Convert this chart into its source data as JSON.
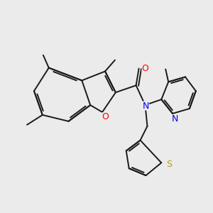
{
  "background_color": "#ebebeb",
  "bond_color": "#1a1a1a",
  "atom_colors": {
    "O_furan": "#ff0000",
    "O_carbonyl": "#ff0000",
    "N": "#0000ee",
    "N_pyridine": "#0000ee",
    "S": "#b8a000",
    "C": "#1a1a1a"
  },
  "figsize": [
    3.0,
    3.0
  ],
  "dpi": 100
}
